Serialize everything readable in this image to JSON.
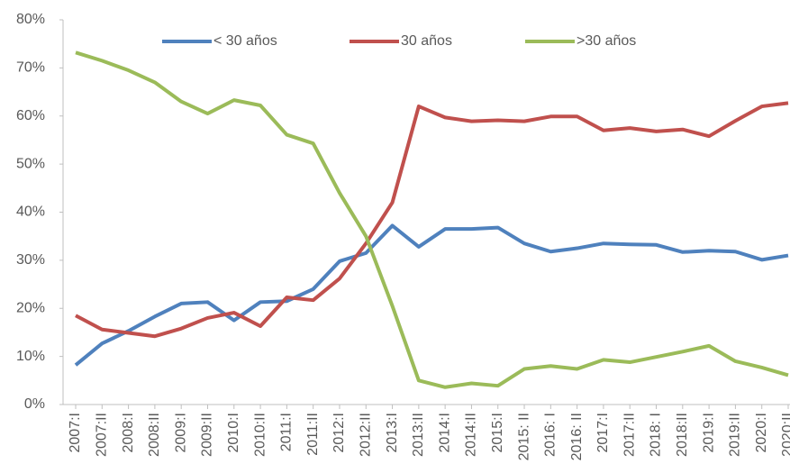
{
  "chart_data": {
    "type": "line",
    "categories": [
      "2007:I",
      "2007:II",
      "2008:I",
      "2008:II",
      "2009:I",
      "2009:II",
      "2010:I",
      "2010:II",
      "2011:I",
      "2011:II",
      "2012:I",
      "2012:II",
      "2013:I",
      "2013:II",
      "2014:I",
      "2014:II",
      "2015:I",
      "2015: II",
      "2016: I",
      "2016: II",
      "2017:I",
      "2017:II",
      "2018: I",
      "2018:II",
      "2019:I",
      "2019:II",
      "2020:I",
      "2020:II"
    ],
    "series": [
      {
        "name": "< 30 años",
        "color": "#4f81bd",
        "values": [
          8.2,
          12.7,
          15.3,
          18.3,
          21,
          21.3,
          17.5,
          21.3,
          21.5,
          24,
          29.8,
          31.5,
          37.2,
          32.8,
          36.5,
          36.5,
          36.8,
          33.5,
          31.8,
          32.5,
          33.5,
          33.3,
          33.2,
          31.7,
          32,
          31.8,
          30.1,
          31
        ]
      },
      {
        "name": "30 años",
        "color": "#c0504d",
        "values": [
          18.5,
          15.6,
          14.9,
          14.2,
          15.8,
          18,
          19.1,
          16.3,
          22.3,
          21.7,
          26.2,
          33.5,
          42,
          62,
          59.7,
          58.9,
          59.1,
          58.9,
          59.9,
          59.9,
          57,
          57.5,
          56.8,
          57.2,
          55.8,
          59,
          62,
          62.7
        ]
      },
      {
        "name": ">30 años",
        "color": "#9bbb59",
        "values": [
          73.2,
          71.5,
          69.5,
          67,
          63,
          60.5,
          63.3,
          62.2,
          56.1,
          54.3,
          44,
          35,
          20.5,
          5,
          3.6,
          4.4,
          3.9,
          7.4,
          8,
          7.4,
          9.3,
          8.8,
          9.9,
          11,
          12.2,
          9,
          7.7,
          6.1
        ]
      }
    ],
    "ylim": [
      0,
      80
    ],
    "yticks": [
      {
        "value": 0,
        "label": "0%"
      },
      {
        "value": 10,
        "label": "10%"
      },
      {
        "value": 20,
        "label": "20%"
      },
      {
        "value": 30,
        "label": "30%"
      },
      {
        "value": 40,
        "label": "40%"
      },
      {
        "value": 50,
        "label": "50%"
      },
      {
        "value": 60,
        "label": "60%"
      },
      {
        "value": 70,
        "label": "70%"
      },
      {
        "value": 80,
        "label": "80%"
      }
    ],
    "legend": "top"
  }
}
